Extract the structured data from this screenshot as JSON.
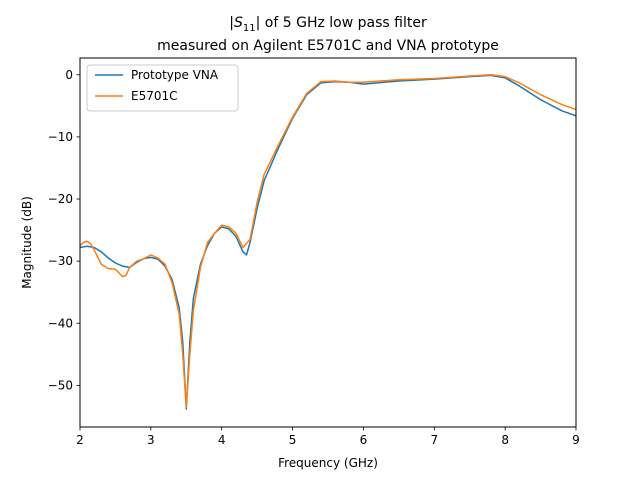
{
  "chart_data": {
    "type": "line",
    "title": {
      "prefix": "|",
      "symbol": "S",
      "subscript": "11",
      "suffix": "| of 5 GHz low pass filter",
      "line2": "measured on Agilent E5701C and VNA prototype"
    },
    "xlabel": "Frequency (GHz)",
    "ylabel": "Magnitude (dB)",
    "xlim": [
      2,
      9
    ],
    "ylim": [
      -56.7,
      2.7
    ],
    "xticks": [
      2,
      3,
      4,
      5,
      6,
      7,
      8,
      9
    ],
    "yticks": [
      0,
      -10,
      -20,
      -30,
      -40,
      -50
    ],
    "xtick_labels": [
      "2",
      "3",
      "4",
      "5",
      "6",
      "7",
      "8",
      "9"
    ],
    "ytick_labels": [
      "0",
      "−10",
      "−20",
      "−30",
      "−40",
      "−50"
    ],
    "grid": false,
    "legend_position": "top-left",
    "series": [
      {
        "name": "Prototype VNA",
        "color": "#1f77b4",
        "x": [
          2.0,
          2.1,
          2.2,
          2.3,
          2.4,
          2.5,
          2.6,
          2.7,
          2.8,
          2.9,
          3.0,
          3.1,
          3.2,
          3.3,
          3.4,
          3.45,
          3.5,
          3.55,
          3.6,
          3.7,
          3.8,
          3.9,
          4.0,
          4.1,
          4.2,
          4.3,
          4.35,
          4.4,
          4.5,
          4.6,
          4.8,
          5.0,
          5.2,
          5.4,
          5.6,
          5.8,
          6.0,
          6.5,
          7.0,
          7.5,
          7.8,
          8.0,
          8.2,
          8.5,
          8.8,
          9.0
        ],
        "y": [
          -27.8,
          -27.6,
          -27.8,
          -28.5,
          -29.5,
          -30.3,
          -30.8,
          -31.0,
          -30.2,
          -29.6,
          -29.4,
          -29.7,
          -30.8,
          -33.0,
          -37.5,
          -43.0,
          -53.8,
          -43.0,
          -36.0,
          -30.5,
          -27.5,
          -25.5,
          -24.5,
          -24.8,
          -26.0,
          -28.5,
          -29.0,
          -27.0,
          -21.5,
          -17.0,
          -11.8,
          -7.0,
          -3.2,
          -1.3,
          -1.1,
          -1.2,
          -1.5,
          -1.0,
          -0.7,
          -0.3,
          -0.1,
          -0.5,
          -1.8,
          -4.0,
          -5.8,
          -6.6
        ]
      },
      {
        "name": "E5701C",
        "color": "#ff7f0e",
        "x": [
          2.0,
          2.05,
          2.1,
          2.15,
          2.2,
          2.3,
          2.4,
          2.5,
          2.6,
          2.65,
          2.7,
          2.8,
          2.9,
          3.0,
          3.1,
          3.2,
          3.3,
          3.4,
          3.45,
          3.5,
          3.55,
          3.6,
          3.7,
          3.8,
          3.9,
          4.0,
          4.1,
          4.2,
          4.3,
          4.4,
          4.5,
          4.6,
          4.8,
          5.0,
          5.2,
          5.4,
          5.6,
          5.8,
          6.0,
          6.5,
          7.0,
          7.5,
          7.8,
          8.0,
          8.2,
          8.5,
          8.8,
          9.0
        ],
        "y": [
          -27.5,
          -27.0,
          -26.8,
          -27.2,
          -28.2,
          -30.5,
          -31.2,
          -31.3,
          -32.5,
          -32.3,
          -31.0,
          -30.0,
          -29.6,
          -29.0,
          -29.5,
          -30.5,
          -33.5,
          -38.5,
          -45.0,
          -53.5,
          -45.0,
          -38.0,
          -31.0,
          -27.0,
          -25.5,
          -24.2,
          -24.5,
          -25.5,
          -27.8,
          -26.5,
          -20.5,
          -16.0,
          -11.3,
          -6.8,
          -3.0,
          -1.1,
          -1.0,
          -1.2,
          -1.2,
          -0.8,
          -0.6,
          -0.2,
          0.0,
          -0.3,
          -1.3,
          -3.2,
          -4.8,
          -5.6
        ]
      }
    ]
  }
}
